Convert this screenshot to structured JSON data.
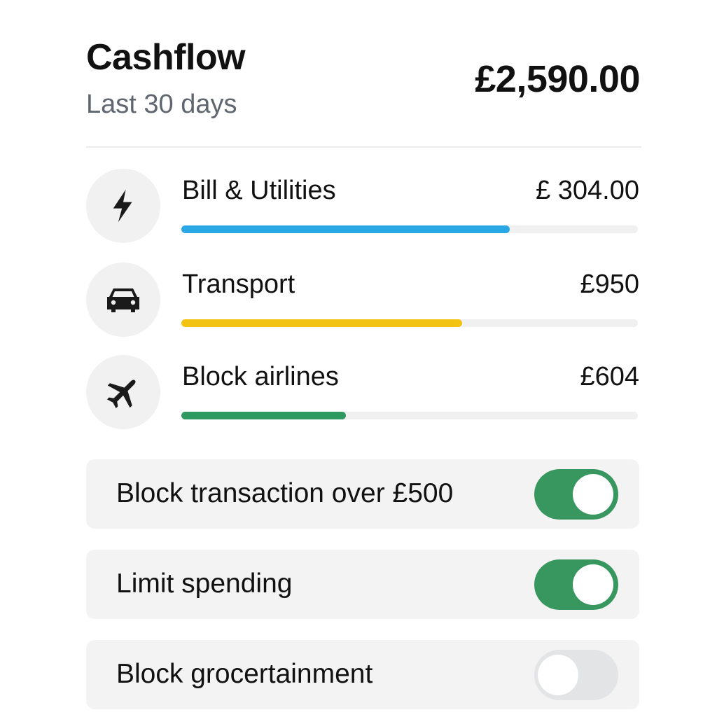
{
  "header": {
    "title": "Cashflow",
    "subtitle": "Last 30 days",
    "total": "£2,590.00"
  },
  "categories": [
    {
      "label": "Bill & Utilities",
      "amount": "£ 304.00",
      "icon": "lightning-icon",
      "progress": 0.72,
      "color": "#2aa8e6"
    },
    {
      "label": "Transport",
      "amount": "£950",
      "icon": "car-icon",
      "progress": 0.615,
      "color": "#f2c312"
    },
    {
      "label": "Block airlines",
      "amount": "£604",
      "icon": "airplane-icon",
      "progress": 0.36,
      "color": "#2e9960"
    }
  ],
  "settings": [
    {
      "label": "Block transaction over £500",
      "enabled": true
    },
    {
      "label": "Limit spending",
      "enabled": true
    },
    {
      "label": "Block grocertainment",
      "enabled": false
    }
  ]
}
